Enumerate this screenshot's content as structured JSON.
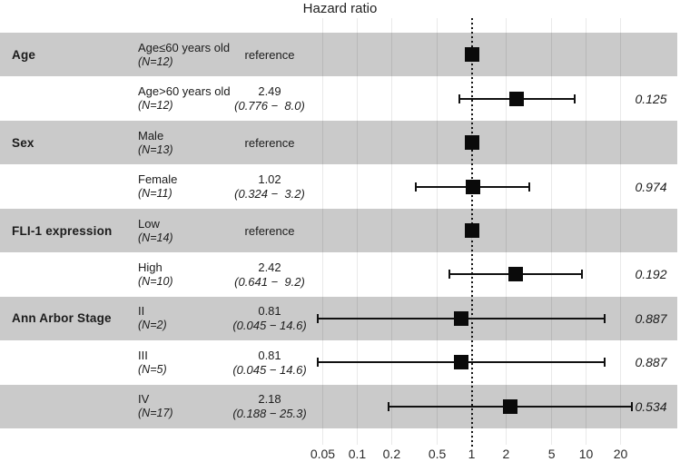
{
  "title": "Hazard ratio",
  "colors": {
    "band_gray": "#cacaca",
    "marker_black": "#0a0a0a",
    "background": "#ffffff"
  },
  "chart_data": {
    "type": "forest",
    "title": "Hazard ratio",
    "x_scale": "log10",
    "xlim": [
      0.05,
      20
    ],
    "x_ticks": [
      0.05,
      0.1,
      0.2,
      0.5,
      1,
      2,
      5,
      10,
      20
    ],
    "x_tick_labels": [
      "0.05",
      "0.1",
      "0.2",
      "0.5",
      "1",
      "2",
      "5",
      "10",
      "20"
    ],
    "reference_line": 1,
    "grid": true,
    "rows": [
      {
        "group": "Age",
        "level": "Age≤60 years old",
        "n": "(N=12)",
        "estimate": "reference",
        "ci_text": "",
        "hr": 1.0,
        "ci_low": null,
        "ci_high": null,
        "p": "",
        "shade": "gray"
      },
      {
        "group": "",
        "level": "Age>60 years old",
        "n": "(N=12)",
        "estimate": "2.49",
        "ci_text": "(0.776 −  8.0)",
        "hr": 2.49,
        "ci_low": 0.776,
        "ci_high": 8.0,
        "p": "0.125",
        "shade": "white"
      },
      {
        "group": "Sex",
        "level": "Male",
        "n": "(N=13)",
        "estimate": "reference",
        "ci_text": "",
        "hr": 1.0,
        "ci_low": null,
        "ci_high": null,
        "p": "",
        "shade": "gray"
      },
      {
        "group": "",
        "level": "Female",
        "n": "(N=11)",
        "estimate": "1.02",
        "ci_text": "(0.324 −  3.2)",
        "hr": 1.02,
        "ci_low": 0.324,
        "ci_high": 3.2,
        "p": "0.974",
        "shade": "white"
      },
      {
        "group": "FLI-1 expression",
        "level": "Low",
        "n": "(N=14)",
        "estimate": "reference",
        "ci_text": "",
        "hr": 1.0,
        "ci_low": null,
        "ci_high": null,
        "p": "",
        "shade": "gray"
      },
      {
        "group": "",
        "level": "High",
        "n": "(N=10)",
        "estimate": "2.42",
        "ci_text": "(0.641 −  9.2)",
        "hr": 2.42,
        "ci_low": 0.641,
        "ci_high": 9.2,
        "p": "0.192",
        "shade": "white"
      },
      {
        "group": "Ann Arbor Stage",
        "level": "II",
        "n": "(N=2)",
        "estimate": "0.81",
        "ci_text": "(0.045 − 14.6)",
        "hr": 0.81,
        "ci_low": 0.045,
        "ci_high": 14.6,
        "p": "0.887",
        "shade": "gray"
      },
      {
        "group": "",
        "level": "III",
        "n": "(N=5)",
        "estimate": "0.81",
        "ci_text": "(0.045 − 14.6)",
        "hr": 0.81,
        "ci_low": 0.045,
        "ci_high": 14.6,
        "p": "0.887",
        "shade": "white"
      },
      {
        "group": "",
        "level": "IV",
        "n": "(N=17)",
        "estimate": "2.18",
        "ci_text": "(0.188 − 25.3)",
        "hr": 2.18,
        "ci_low": 0.188,
        "ci_high": 25.3,
        "p": "0.534",
        "shade": "gray"
      }
    ]
  }
}
